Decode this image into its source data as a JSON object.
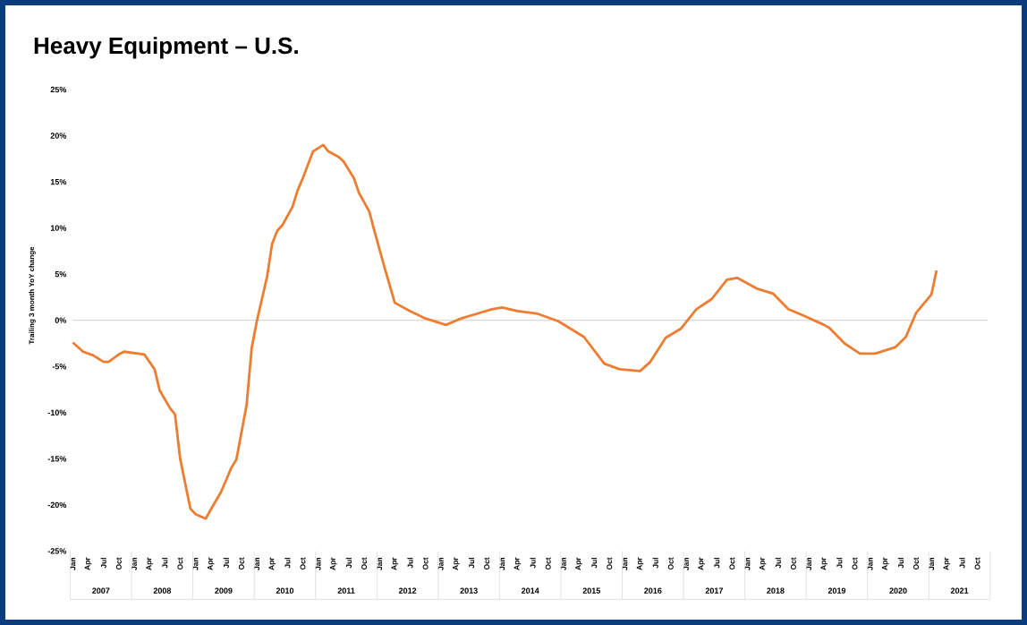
{
  "chart_data": {
    "type": "line",
    "title": "Heavy Equipment – U.S.",
    "ylabel": "Trailing 3 month YoY change",
    "color": "#ed7d31",
    "x": [
      "2007-01",
      "2007-03",
      "2007-05",
      "2007-07",
      "2007-08",
      "2007-10",
      "2007-11",
      "2008-03",
      "2008-05",
      "2008-06",
      "2008-08",
      "2008-09",
      "2008-10",
      "2008-12",
      "2009-01",
      "2009-03",
      "2009-04",
      "2009-06",
      "2009-08",
      "2009-09",
      "2009-11",
      "2009-12",
      "2010-01",
      "2010-03",
      "2010-04",
      "2010-05",
      "2010-06",
      "2010-08",
      "2010-09",
      "2010-10",
      "2010-12",
      "2011-02",
      "2011-03",
      "2011-05",
      "2011-06",
      "2011-08",
      "2011-09",
      "2011-11",
      "2011-12",
      "2012-02",
      "2012-04",
      "2012-07",
      "2012-10",
      "2013-02",
      "2013-05",
      "2013-08",
      "2013-11",
      "2014-01",
      "2014-04",
      "2014-08",
      "2014-12",
      "2015-05",
      "2015-09",
      "2015-12",
      "2016-04",
      "2016-06",
      "2016-09",
      "2016-12",
      "2017-03",
      "2017-06",
      "2017-09",
      "2017-11",
      "2018-03",
      "2018-06",
      "2018-09",
      "2018-12",
      "2019-04",
      "2019-05",
      "2019-08",
      "2019-11",
      "2020-02",
      "2020-06",
      "2020-08",
      "2020-10",
      "2021-01",
      "2021-02"
    ],
    "values": [
      -2.4,
      -3.4,
      -3.8,
      -4.5,
      -4.5,
      -3.7,
      -3.4,
      -3.7,
      -5.3,
      -7.6,
      -9.5,
      -10.2,
      -15,
      -20.4,
      -21,
      -21.5,
      -20.5,
      -18.6,
      -16,
      -15.1,
      -9.2,
      -3,
      -0.1,
      4.7,
      8.3,
      9.7,
      10.3,
      12.3,
      14.1,
      15.4,
      18.3,
      19,
      18.3,
      17.7,
      17.2,
      15.4,
      13.8,
      11.8,
      9.7,
      5.7,
      1.9,
      1,
      0.2,
      -0.5,
      0.2,
      0.7,
      1.2,
      1.4,
      1,
      0.7,
      -0.1,
      -1.8,
      -4.7,
      -5.3,
      -5.5,
      -4.5,
      -1.9,
      -0.9,
      1.2,
      2.3,
      4.4,
      4.6,
      3.4,
      2.9,
      1.2,
      0.5,
      -0.5,
      -0.8,
      -2.5,
      -3.6,
      -3.6,
      -2.9,
      -1.8,
      0.8,
      2.8,
      5.4
    ],
    "xlim": [
      "2007-01",
      "2021-12"
    ],
    "xticks": [
      {
        "value": "2007-01",
        "label": "Jan"
      },
      {
        "value": "2007-04",
        "label": "Apr"
      },
      {
        "value": "2007-07",
        "label": "Jul"
      },
      {
        "value": "2007-10",
        "label": "Oct"
      },
      {
        "value": "2008-01",
        "label": "Jan"
      },
      {
        "value": "2008-04",
        "label": "Apr"
      },
      {
        "value": "2008-07",
        "label": "Jul"
      },
      {
        "value": "2008-10",
        "label": "Oct"
      },
      {
        "value": "2009-01",
        "label": "Jan"
      },
      {
        "value": "2009-04",
        "label": "Apr"
      },
      {
        "value": "2009-07",
        "label": "Jul"
      },
      {
        "value": "2009-10",
        "label": "Oct"
      },
      {
        "value": "2010-01",
        "label": "Jan"
      },
      {
        "value": "2010-04",
        "label": "Apr"
      },
      {
        "value": "2010-07",
        "label": "Jul"
      },
      {
        "value": "2010-10",
        "label": "Oct"
      },
      {
        "value": "2011-01",
        "label": "Jan"
      },
      {
        "value": "2011-04",
        "label": "Apr"
      },
      {
        "value": "2011-07",
        "label": "Jul"
      },
      {
        "value": "2011-10",
        "label": "Oct"
      },
      {
        "value": "2012-01",
        "label": "Jan"
      },
      {
        "value": "2012-04",
        "label": "Apr"
      },
      {
        "value": "2012-07",
        "label": "Jul"
      },
      {
        "value": "2012-10",
        "label": "Oct"
      },
      {
        "value": "2013-01",
        "label": "Jan"
      },
      {
        "value": "2013-04",
        "label": "Apr"
      },
      {
        "value": "2013-07",
        "label": "Jul"
      },
      {
        "value": "2013-10",
        "label": "Oct"
      },
      {
        "value": "2014-01",
        "label": "Jan"
      },
      {
        "value": "2014-04",
        "label": "Apr"
      },
      {
        "value": "2014-07",
        "label": "Jul"
      },
      {
        "value": "2014-10",
        "label": "Oct"
      },
      {
        "value": "2015-01",
        "label": "Jan"
      },
      {
        "value": "2015-04",
        "label": "Apr"
      },
      {
        "value": "2015-07",
        "label": "Jul"
      },
      {
        "value": "2015-10",
        "label": "Oct"
      },
      {
        "value": "2016-01",
        "label": "Jan"
      },
      {
        "value": "2016-04",
        "label": "Apr"
      },
      {
        "value": "2016-07",
        "label": "Jul"
      },
      {
        "value": "2016-10",
        "label": "Oct"
      },
      {
        "value": "2017-01",
        "label": "Jan"
      },
      {
        "value": "2017-04",
        "label": "Apr"
      },
      {
        "value": "2017-07",
        "label": "Jul"
      },
      {
        "value": "2017-10",
        "label": "Oct"
      },
      {
        "value": "2018-01",
        "label": "Jan"
      },
      {
        "value": "2018-04",
        "label": "Apr"
      },
      {
        "value": "2018-07",
        "label": "Jul"
      },
      {
        "value": "2018-10",
        "label": "Oct"
      },
      {
        "value": "2019-01",
        "label": "Jan"
      },
      {
        "value": "2019-04",
        "label": "Apr"
      },
      {
        "value": "2019-07",
        "label": "Jul"
      },
      {
        "value": "2019-10",
        "label": "Oct"
      },
      {
        "value": "2020-01",
        "label": "Jan"
      },
      {
        "value": "2020-04",
        "label": "Apr"
      },
      {
        "value": "2020-07",
        "label": "Jul"
      },
      {
        "value": "2020-10",
        "label": "Oct"
      },
      {
        "value": "2021-01",
        "label": "Jan"
      },
      {
        "value": "2021-04",
        "label": "Apr"
      },
      {
        "value": "2021-07",
        "label": "Jul"
      },
      {
        "value": "2021-10",
        "label": "Oct"
      }
    ],
    "x2lim": [
      "2007-01",
      "2021-12"
    ],
    "x2ticks": [
      {
        "value": "2007-07",
        "label": "2007"
      },
      {
        "value": "2008-07",
        "label": "2008"
      },
      {
        "value": "2009-07",
        "label": "2009"
      },
      {
        "value": "2010-07",
        "label": "2010"
      },
      {
        "value": "2011-07",
        "label": "2011"
      },
      {
        "value": "2012-07",
        "label": "2012"
      },
      {
        "value": "2013-07",
        "label": "2013"
      },
      {
        "value": "2014-07",
        "label": "2014"
      },
      {
        "value": "2015-07",
        "label": "2015"
      },
      {
        "value": "2016-07",
        "label": "2016"
      },
      {
        "value": "2017-07",
        "label": "2017"
      },
      {
        "value": "2018-07",
        "label": "2018"
      },
      {
        "value": "2019-07",
        "label": "2019"
      },
      {
        "value": "2020-07",
        "label": "2020"
      },
      {
        "value": "2021-07",
        "label": "2021"
      }
    ],
    "ylim": [
      -25,
      25
    ],
    "yticks": [
      {
        "value": 25,
        "label": "25%"
      },
      {
        "value": 20,
        "label": "20%"
      },
      {
        "value": 15,
        "label": "15%"
      },
      {
        "value": 10,
        "label": "10%"
      },
      {
        "value": 5,
        "label": "5%"
      },
      {
        "value": 0,
        "label": "0%"
      },
      {
        "value": -5,
        "label": "-5%"
      },
      {
        "value": -10,
        "label": "-10%"
      },
      {
        "value": -15,
        "label": "-15%"
      },
      {
        "value": -20,
        "label": "-20%"
      },
      {
        "value": -25,
        "label": "-25%"
      }
    ],
    "ref_lines": [
      {
        "axis": "y",
        "value": 0,
        "color": "#d9d9d9"
      }
    ],
    "line_style": "solid",
    "marker": "none",
    "grid": false
  }
}
